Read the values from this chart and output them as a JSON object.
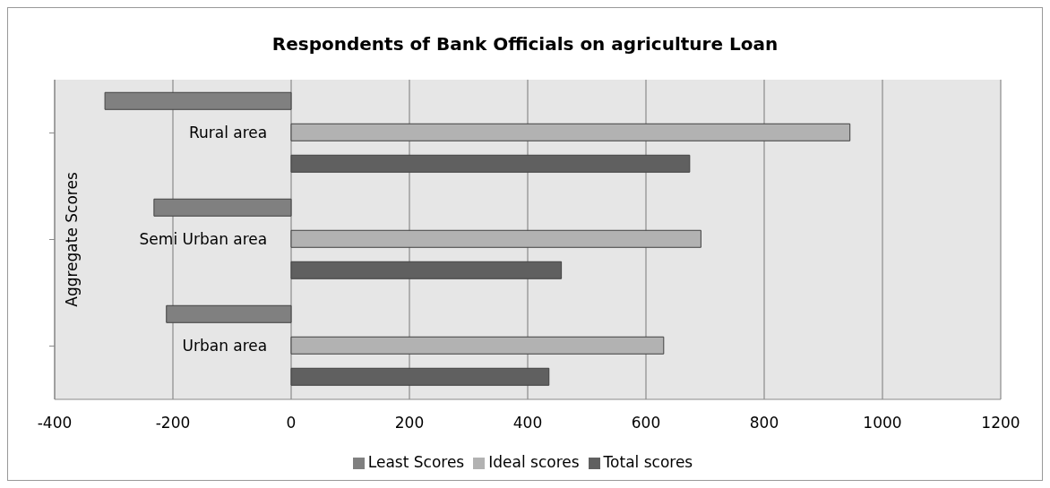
{
  "chart_data": {
    "type": "bar",
    "orientation": "horizontal",
    "title": "Respondents of Bank Officials on agriculture Loan",
    "ylabel": "Aggregate Scores",
    "categories": [
      "Rural area",
      "Semi Urban area",
      "Urban area"
    ],
    "series": [
      {
        "name": "Least Scores",
        "color": "#808080",
        "values": [
          -315,
          -232,
          -211
        ]
      },
      {
        "name": "Ideal scores",
        "color": "#b2b2b2",
        "values": [
          945,
          693,
          630
        ]
      },
      {
        "name": "Total scores",
        "color": "#606060",
        "values": [
          674,
          457,
          436
        ]
      }
    ],
    "xlim": [
      -400,
      1200
    ],
    "xticks": [
      -400,
      -200,
      0,
      200,
      400,
      600,
      800,
      1000,
      1200
    ],
    "grid": "x",
    "legend": "bottom"
  }
}
